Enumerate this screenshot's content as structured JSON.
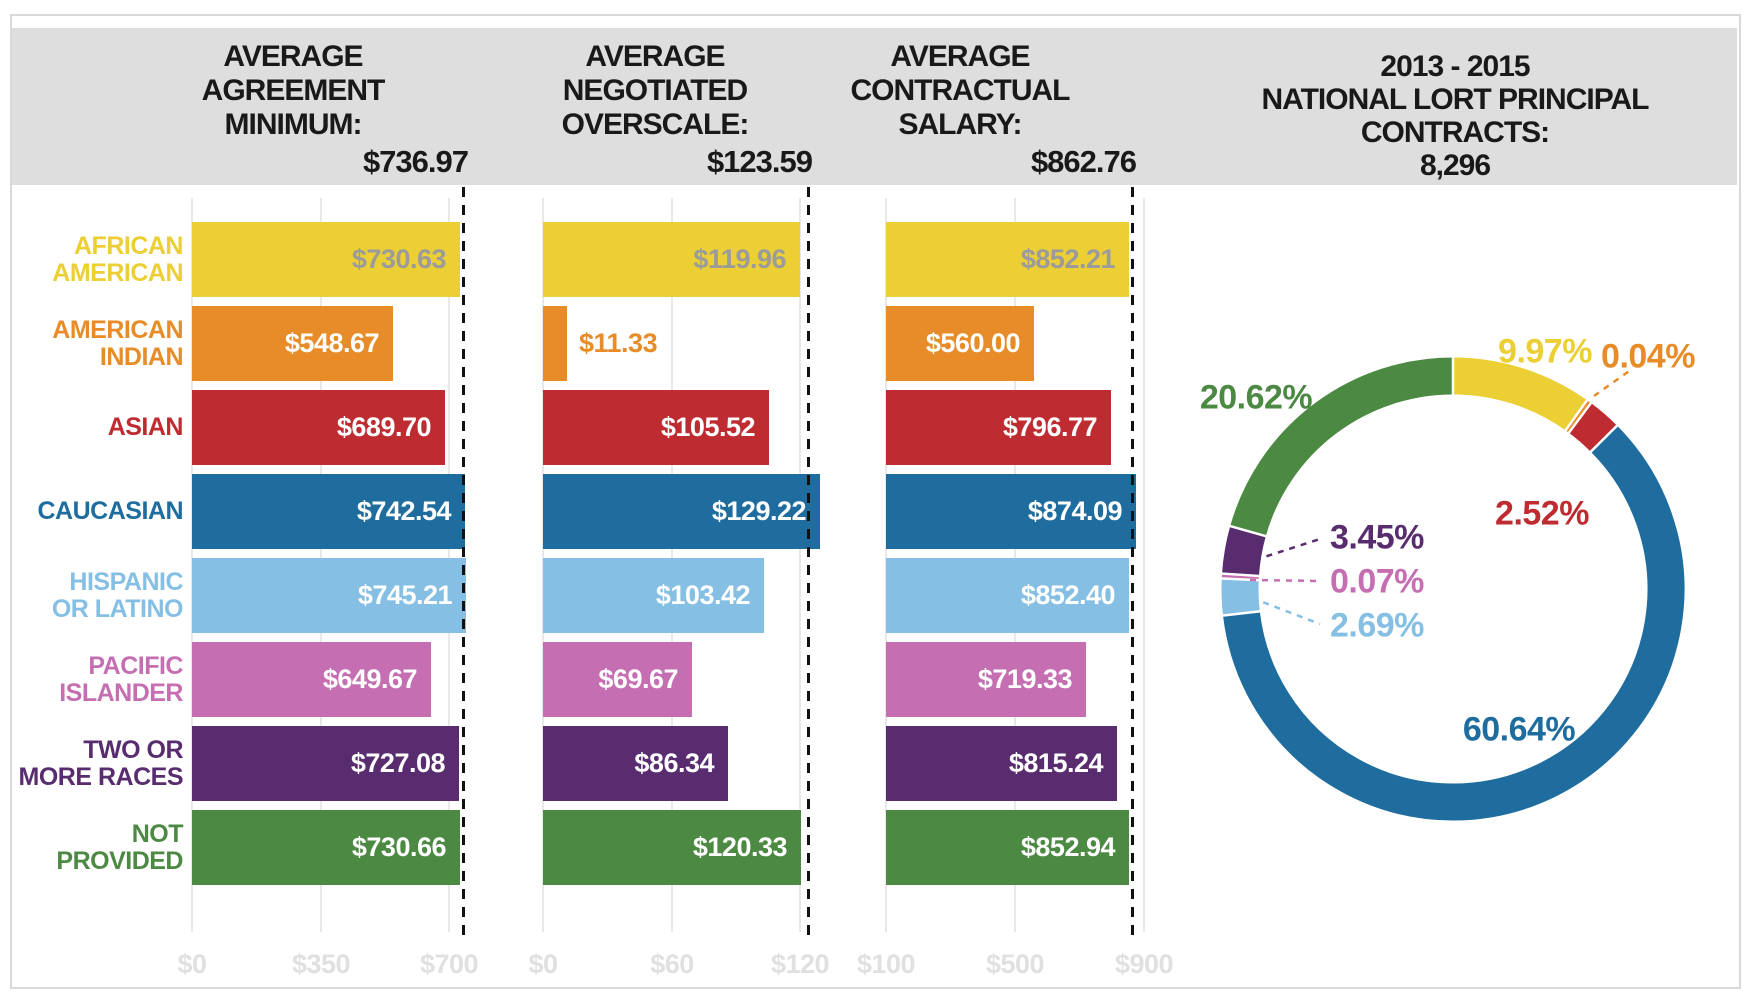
{
  "title_band": {
    "columns": [
      {
        "id": "agreement-minimum",
        "title_lines": [
          "AVERAGE",
          "AGREEMENT",
          "MINIMUM:"
        ],
        "value": "$736.97"
      },
      {
        "id": "negotiated-overscale",
        "title_lines": [
          "AVERAGE",
          "NEGOTIATED",
          "OVERSCALE:"
        ],
        "value": "$123.59"
      },
      {
        "id": "contractual-salary",
        "title_lines": [
          "AVERAGE",
          "CONTRACTUAL",
          "SALARY:"
        ],
        "value": "$862.76"
      },
      {
        "id": "contracts-total",
        "title_lines": [
          "2013 - 2015",
          "NATIONAL LORT PRINCIPAL",
          "CONTRACTS:"
        ],
        "value": "8,296"
      }
    ]
  },
  "rows": [
    {
      "id": "african-american",
      "label_lines": [
        "AFRICAN",
        "AMERICAN"
      ],
      "color": "#ebcf34"
    },
    {
      "id": "american-indian",
      "label_lines": [
        "AMERICAN",
        "INDIAN"
      ],
      "color": "#e78c28"
    },
    {
      "id": "asian",
      "label_lines": [
        "ASIAN"
      ],
      "color": "#be2b31"
    },
    {
      "id": "caucasian",
      "label_lines": [
        "CAUCASIAN"
      ],
      "color": "#1e6d9e"
    },
    {
      "id": "hispanic-latino",
      "label_lines": [
        "HISPANIC",
        "OR LATINO"
      ],
      "color": "#85bfe4"
    },
    {
      "id": "pacific-islander",
      "label_lines": [
        "PACIFIC",
        "ISLANDER"
      ],
      "color": "#c56fb2"
    },
    {
      "id": "two-or-more-races",
      "label_lines": [
        "TWO OR",
        "MORE RACES"
      ],
      "color": "#592c6f"
    },
    {
      "id": "not-provided",
      "label_lines": [
        "NOT",
        "PROVIDED"
      ],
      "color": "#4c8942"
    }
  ],
  "colors": {
    "header_bg": "#dedede",
    "header_text": "#191919",
    "grid": "#e8e8e8",
    "axis_text": "#e0e0e0",
    "value_text_on_yellow": "#9b9b9b",
    "value_text_default": "#ffffff",
    "average_line": "#111111",
    "frame": "#d9d9d9"
  },
  "chart_data": [
    {
      "type": "bar",
      "title": "AVERAGE AGREEMENT MINIMUM",
      "average": 736.97,
      "average_label": "$736.97",
      "categories": [
        "AFRICAN AMERICAN",
        "AMERICAN INDIAN",
        "ASIAN",
        "CAUCASIAN",
        "HISPANIC OR LATINO",
        "PACIFIC ISLANDER",
        "TWO OR MORE RACES",
        "NOT PROVIDED"
      ],
      "values": [
        730.63,
        548.67,
        689.7,
        742.54,
        745.21,
        649.67,
        727.08,
        730.66
      ],
      "value_labels": [
        "$730.63",
        "$548.67",
        "$689.70",
        "$742.54",
        "$745.21",
        "$649.67",
        "$727.08",
        "$730.66"
      ],
      "ticks": [
        {
          "value": 0,
          "label": "$0"
        },
        {
          "value": 350,
          "label": "$350"
        },
        {
          "value": 700,
          "label": "$700"
        }
      ],
      "xlim": [
        0,
        756
      ],
      "grid": true
    },
    {
      "type": "bar",
      "title": "AVERAGE NEGOTIATED OVERSCALE",
      "average": 123.59,
      "average_label": "$123.59",
      "categories": [
        "AFRICAN AMERICAN",
        "AMERICAN INDIAN",
        "ASIAN",
        "CAUCASIAN",
        "HISPANIC OR LATINO",
        "PACIFIC ISLANDER",
        "TWO OR MORE RACES",
        "NOT PROVIDED"
      ],
      "values": [
        119.96,
        11.33,
        105.52,
        129.22,
        103.42,
        69.67,
        86.34,
        120.33
      ],
      "value_labels": [
        "$119.96",
        "$11.33",
        "$105.52",
        "$129.22",
        "$103.42",
        "$69.67",
        "$86.34",
        "$120.33"
      ],
      "ticks": [
        {
          "value": 0,
          "label": "$0"
        },
        {
          "value": 60,
          "label": "$60"
        },
        {
          "value": 120,
          "label": "$120"
        }
      ],
      "xlim": [
        0,
        130
      ],
      "grid": true
    },
    {
      "type": "bar",
      "title": "AVERAGE CONTRACTUAL SALARY",
      "average": 862.76,
      "average_label": "$862.76",
      "categories": [
        "AFRICAN AMERICAN",
        "AMERICAN INDIAN",
        "ASIAN",
        "CAUCASIAN",
        "HISPANIC OR LATINO",
        "PACIFIC ISLANDER",
        "TWO OR MORE RACES",
        "NOT PROVIDED"
      ],
      "values": [
        852.21,
        560.0,
        796.77,
        874.09,
        852.4,
        719.33,
        815.24,
        852.94
      ],
      "value_labels": [
        "$852.21",
        "$560.00",
        "$796.77",
        "$874.09",
        "$852.40",
        "$719.33",
        "$815.24",
        "$852.94"
      ],
      "ticks": [
        {
          "value": 100,
          "label": "$100"
        },
        {
          "value": 500,
          "label": "$500"
        },
        {
          "value": 900,
          "label": "$900"
        }
      ],
      "xlim": [
        100,
        900
      ],
      "grid": true
    },
    {
      "type": "pie",
      "subtype": "donut",
      "title": "2013 - 2015 NATIONAL LORT PRINCIPAL CONTRACTS: 8,296",
      "total": "8,296",
      "labels": [
        "AFRICAN AMERICAN",
        "AMERICAN INDIAN",
        "ASIAN",
        "CAUCASIAN",
        "HISPANIC OR LATINO",
        "PACIFIC ISLANDER",
        "TWO OR MORE RACES",
        "NOT PROVIDED"
      ],
      "values": [
        9.97,
        0.04,
        2.52,
        60.64,
        2.69,
        0.07,
        3.45,
        20.62
      ],
      "value_labels": [
        "9.97%",
        "0.04%",
        "2.52%",
        "60.64%",
        "2.69%",
        "0.07%",
        "3.45%",
        "20.62%"
      ],
      "legend_position": "none"
    }
  ]
}
